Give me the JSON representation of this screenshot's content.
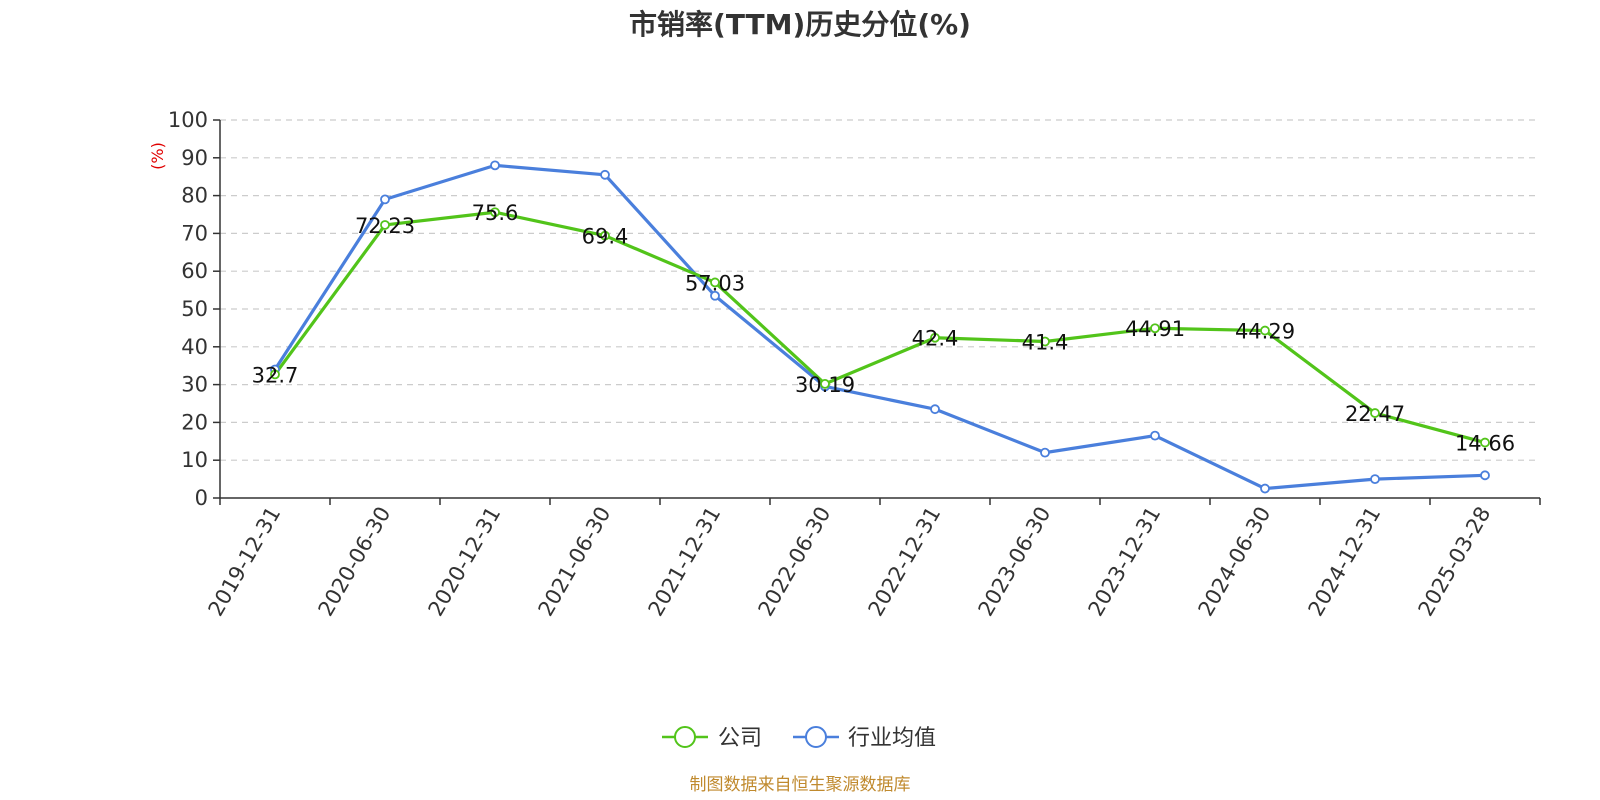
{
  "title": "市销率(TTM)历史分位(%)",
  "source": "制图数据来自恒生聚源数据库",
  "chart_data": {
    "type": "line",
    "title": "市销率(TTM)历史分位(%)",
    "ylabel": "(%)",
    "ylim": [
      0,
      100
    ],
    "yticks": [
      "0",
      "10",
      "20",
      "30",
      "40",
      "50",
      "60",
      "70",
      "80",
      "90",
      "100"
    ],
    "grid": true,
    "legend_position": "bottom",
    "categories": [
      "2019-12-31",
      "2020-06-30",
      "2020-12-31",
      "2021-06-30",
      "2021-12-31",
      "2022-06-30",
      "2022-12-31",
      "2023-06-30",
      "2023-12-31",
      "2024-06-30",
      "2024-12-31",
      "2025-03-28"
    ],
    "series": [
      {
        "name": "公司",
        "color": "#52c41a",
        "values": [
          32.7,
          72.23,
          75.6,
          69.4,
          57.03,
          30.19,
          42.4,
          41.4,
          44.91,
          44.29,
          22.47,
          14.66
        ],
        "labels": [
          "32.7",
          "72.23",
          "75.6",
          "69.4",
          "57.03",
          "30.19",
          "42.4",
          "41.4",
          "44.91",
          "44.29",
          "22.47",
          "14.66"
        ]
      },
      {
        "name": "行业均值",
        "color": "#4a7fdc",
        "values": [
          34,
          79,
          88,
          85.5,
          53.5,
          29.5,
          23.5,
          12,
          16.5,
          2.5,
          5,
          6
        ]
      }
    ]
  }
}
